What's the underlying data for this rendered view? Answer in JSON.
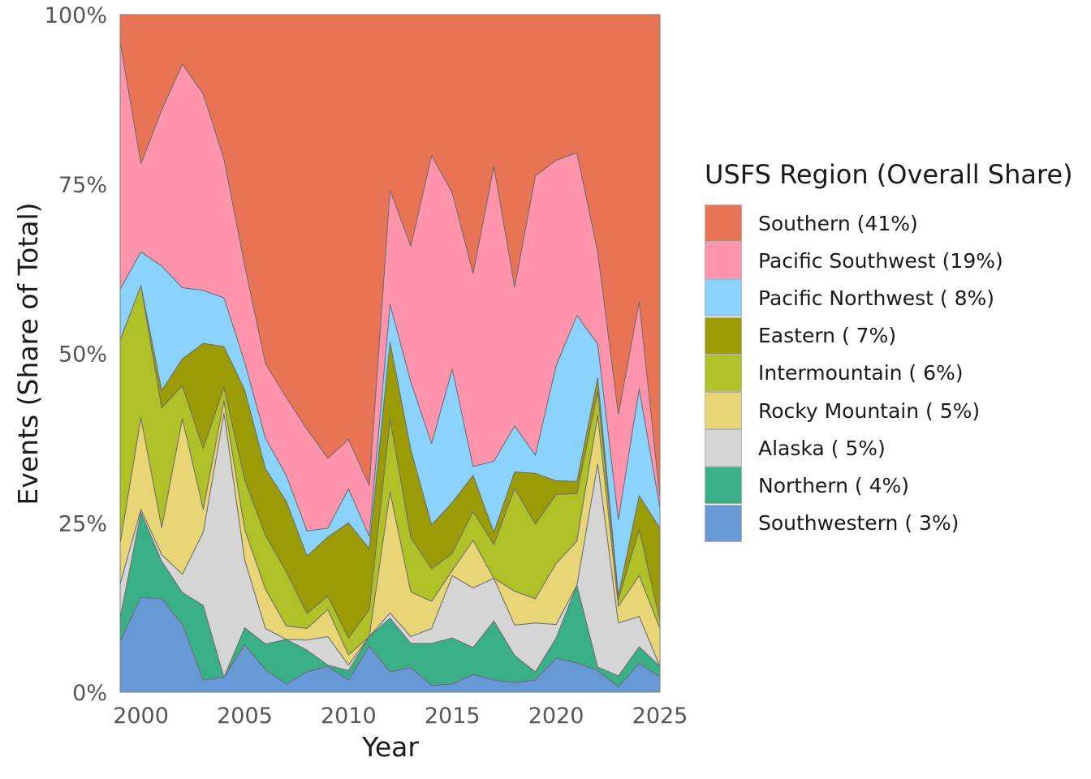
{
  "chart_data": {
    "type": "area",
    "stacked": true,
    "normalized": true,
    "xlabel": "Year",
    "ylabel": "Events (Share of Total)",
    "xlim": [
      1999,
      2025
    ],
    "ylim": [
      0,
      1
    ],
    "x_ticks": [
      2000,
      2005,
      2010,
      2015,
      2020,
      2025
    ],
    "y_ticks": [
      {
        "value": 0,
        "label": "0%"
      },
      {
        "value": 0.25,
        "label": "25%"
      },
      {
        "value": 0.5,
        "label": "50%"
      },
      {
        "value": 0.75,
        "label": "75%"
      },
      {
        "value": 1,
        "label": "100%"
      }
    ],
    "grid": false,
    "legend_position": "right",
    "legend_title": "USFS Region (Overall Share)",
    "x": [
      1999,
      2000,
      2001,
      2002,
      2003,
      2004,
      2005,
      2006,
      2007,
      2008,
      2009,
      2010,
      2011,
      2012,
      2013,
      2014,
      2015,
      2016,
      2017,
      2018,
      2019,
      2020,
      2021,
      2022,
      2023,
      2024,
      2025
    ],
    "series": [
      {
        "name": "Southwestern",
        "legend_label": "Southwestern ( 3%)",
        "color": "#6699D6",
        "values": [
          0.075,
          0.14,
          0.138,
          0.1,
          0.018,
          0.022,
          0.07,
          0.033,
          0.012,
          0.03,
          0.038,
          0.018,
          0.068,
          0.03,
          0.036,
          0.01,
          0.012,
          0.026,
          0.018,
          0.014,
          0.018,
          0.05,
          0.043,
          0.032,
          0.008,
          0.043,
          0.022
        ]
      },
      {
        "name": "Northern",
        "legend_label": "Northern ( 4%)",
        "color": "#39AF88",
        "values": [
          0.035,
          0.125,
          0.055,
          0.047,
          0.11,
          0.0,
          0.025,
          0.038,
          0.066,
          0.032,
          0.002,
          0.014,
          0.014,
          0.08,
          0.036,
          0.062,
          0.068,
          0.04,
          0.087,
          0.04,
          0.012,
          0.03,
          0.115,
          0.005,
          0.016,
          0.024,
          0.016
        ]
      },
      {
        "name": "Alaska",
        "legend_label": "Alaska ( 5%)",
        "color": "#D5D5D5",
        "values": [
          0.05,
          0.005,
          0.01,
          0.027,
          0.108,
          0.39,
          0.1,
          0.023,
          0.0,
          0.015,
          0.042,
          0.008,
          0.0,
          0.008,
          0.01,
          0.022,
          0.092,
          0.088,
          0.063,
          0.045,
          0.072,
          0.02,
          0.0,
          0.3,
          0.078,
          0.045,
          0.0
        ]
      },
      {
        "name": "Rocky Mountain",
        "legend_label": "Rocky Mountain ( 5%)",
        "color": "#E8D676",
        "values": [
          0.06,
          0.135,
          0.04,
          0.23,
          0.034,
          0.018,
          0.045,
          0.058,
          0.02,
          0.017,
          0.04,
          0.015,
          0.0,
          0.18,
          0.066,
          0.04,
          0.008,
          0.07,
          0.0,
          0.05,
          0.036,
          0.09,
          0.065,
          0.072,
          0.025,
          0.06,
          0.056
        ]
      },
      {
        "name": "Intermountain",
        "legend_label": "Intermountain ( 6%)",
        "color": "#B0C128",
        "values": [
          0.3,
          0.195,
          0.177,
          0.048,
          0.09,
          0.02,
          0.073,
          0.08,
          0.08,
          0.022,
          0.02,
          0.025,
          0.04,
          0.108,
          0.08,
          0.048,
          0.025,
          0.043,
          0.05,
          0.152,
          0.11,
          0.102,
          0.07,
          0.035,
          0.01,
          0.068,
          0.012
        ]
      },
      {
        "name": "Eastern",
        "legend_label": "Eastern ( 7%)",
        "color": "#9B9B05",
        "values": [
          0.0,
          0.0,
          0.025,
          0.04,
          0.155,
          0.06,
          0.133,
          0.098,
          0.104,
          0.085,
          0.087,
          0.17,
          0.09,
          0.115,
          0.13,
          0.065,
          0.075,
          0.053,
          0.018,
          0.024,
          0.075,
          0.02,
          0.018,
          0.02,
          0.006,
          0.05,
          0.136
        ]
      },
      {
        "name": "Pacific Northwest",
        "legend_label": "Pacific Northwest ( 8%)",
        "color": "#8AD3FF",
        "values": [
          0.075,
          0.05,
          0.184,
          0.105,
          0.078,
          0.072,
          0.041,
          0.045,
          0.038,
          0.037,
          0.013,
          0.05,
          0.018,
          0.056,
          0.1,
          0.12,
          0.197,
          0.013,
          0.105,
          0.068,
          0.027,
          0.17,
          0.245,
          0.05,
          0.112,
          0.158,
          0.03
        ]
      },
      {
        "name": "Pacific Southwest",
        "legend_label": "Pacific Southwest (19%)",
        "color": "#FF94AC",
        "values": [
          0.365,
          0.13,
          0.23,
          0.33,
          0.29,
          0.205,
          0.143,
          0.11,
          0.115,
          0.15,
          0.103,
          0.073,
          0.075,
          0.17,
          0.2,
          0.425,
          0.26,
          0.285,
          0.435,
          0.205,
          0.412,
          0.303,
          0.24,
          0.136,
          0.155,
          0.128,
          0.015
        ]
      },
      {
        "name": "Southern",
        "legend_label": "Southern (41%)",
        "color": "#E87455",
        "values": [
          0.04,
          0.22,
          0.141,
          0.073,
          0.117,
          0.213,
          0.37,
          0.515,
          0.565,
          0.612,
          0.655,
          0.627,
          0.695,
          0.261,
          0.342,
          0.208,
          0.263,
          0.382,
          0.224,
          0.402,
          0.238,
          0.215,
          0.204,
          0.35,
          0.59,
          0.424,
          0.713
        ]
      }
    ]
  }
}
